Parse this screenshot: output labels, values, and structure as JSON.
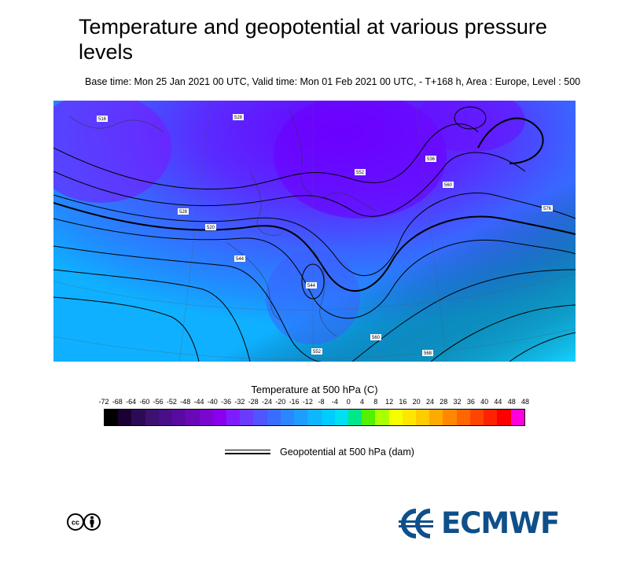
{
  "header": {
    "title": "Temperature and geopotential at various pressure levels",
    "subtitle": "Base time: Mon 25 Jan 2021 00 UTC, Valid time: Mon 01 Feb 2021 00 UTC, - T+168 h, Area : Europe, Level : 500"
  },
  "map": {
    "contour_labels": [
      "516",
      "528",
      "552",
      "536",
      "528",
      "520",
      "544",
      "560",
      "568",
      "560",
      "576",
      "544",
      "552"
    ]
  },
  "legend": {
    "colorbar_title": "Temperature at 500 hPa (C)",
    "tick_labels": [
      "-72",
      "-68",
      "-64",
      "-60",
      "-56",
      "-52",
      "-48",
      "-44",
      "-40",
      "-36",
      "-32",
      "-28",
      "-24",
      "-20",
      "-16",
      "-12",
      "-8",
      "-4",
      "0",
      "4",
      "8",
      "12",
      "16",
      "20",
      "24",
      "28",
      "32",
      "36",
      "40",
      "44",
      "48",
      "48"
    ],
    "colors": [
      "#000000",
      "#1a0033",
      "#2c0b55",
      "#3d1170",
      "#4b0e8a",
      "#5a0aa0",
      "#6a08b8",
      "#7a06d0",
      "#8a00ee",
      "#7f1cff",
      "#6a3bff",
      "#4f55ff",
      "#3a6dff",
      "#2b86ff",
      "#1c9dff",
      "#10b4ff",
      "#00ccff",
      "#00e0f0",
      "#00e68a",
      "#53f000",
      "#aaff00",
      "#f5ff00",
      "#ffe600",
      "#ffcc00",
      "#ffaa00",
      "#ff8800",
      "#ff6600",
      "#ff4400",
      "#ff2200",
      "#ff0000",
      "#ff00dd"
    ],
    "line_label": "Geopotential at 500 hPa (dam)"
  },
  "logo": {
    "text": "ECMWF",
    "color": "#0f4f8a"
  },
  "license": {
    "icon": "creative-commons-by-icon"
  }
}
